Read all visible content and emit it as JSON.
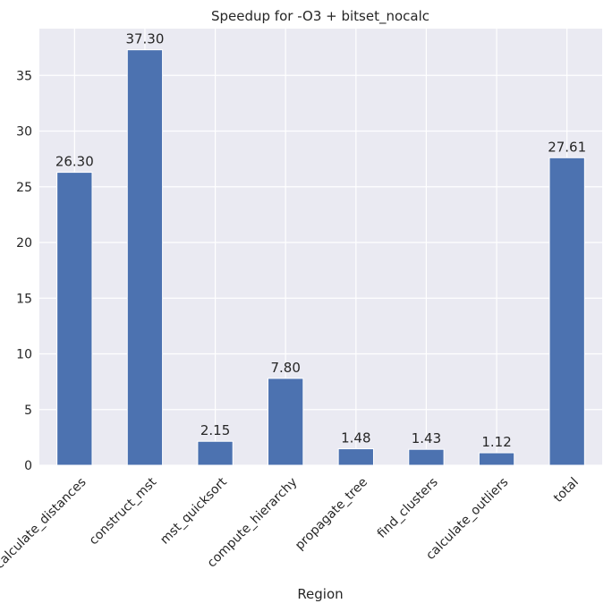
{
  "chart_data": {
    "type": "bar",
    "title": "Speedup for -O3 + bitset_nocalc",
    "xlabel": "Region",
    "ylabel": "",
    "categories": [
      "calculate_distances",
      "construct_mst",
      "mst_quicksort",
      "compute_hierarchy",
      "propagate_tree",
      "find_clusters",
      "calculate_outliers",
      "total"
    ],
    "values": [
      26.3,
      37.3,
      2.15,
      7.8,
      1.48,
      1.43,
      1.12,
      27.61
    ],
    "value_labels": [
      "26.30",
      "37.30",
      "2.15",
      "7.80",
      "1.48",
      "1.43",
      "1.12",
      "27.61"
    ],
    "ylim": [
      0,
      39.2
    ],
    "yticks": [
      0,
      5,
      10,
      15,
      20,
      25,
      30,
      35
    ],
    "grid": true,
    "legend": "none",
    "colors": {
      "bar": "#4c72b0",
      "background": "#eaeaf2",
      "grid": "#ffffff",
      "text": "#262626"
    }
  }
}
